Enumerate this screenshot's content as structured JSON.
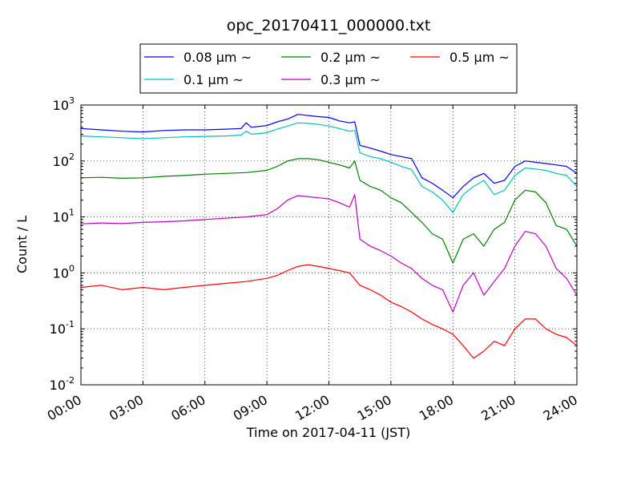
{
  "chart_data": {
    "type": "line",
    "title": "opc_20170411_000000.txt",
    "xlabel": "Time on 2017-04-11 (JST)",
    "ylabel": "Count / L",
    "yscale": "log",
    "ylim": [
      0.01,
      1000
    ],
    "xlim": [
      "00:00",
      "24:00"
    ],
    "x_ticks": [
      "00:00",
      "03:00",
      "06:00",
      "09:00",
      "12:00",
      "15:00",
      "18:00",
      "21:00",
      "24:00"
    ],
    "y_ticks": [
      {
        "base": "10",
        "exp": "-2"
      },
      {
        "base": "10",
        "exp": "-1"
      },
      {
        "base": "10",
        "exp": "0"
      },
      {
        "base": "10",
        "exp": "1"
      },
      {
        "base": "10",
        "exp": "2"
      },
      {
        "base": "10",
        "exp": "3"
      }
    ],
    "grid": true,
    "legend": "top-center",
    "series": [
      {
        "name": "0.08 μm ~",
        "color": "#0000ff",
        "x": [
          "00:00",
          "01:00",
          "02:00",
          "03:00",
          "04:00",
          "05:00",
          "06:00",
          "07:00",
          "07:45",
          "08:00",
          "08:15",
          "09:00",
          "09:30",
          "10:00",
          "10:30",
          "11:00",
          "11:30",
          "12:00",
          "12:30",
          "13:00",
          "13:15",
          "13:30",
          "14:00",
          "14:30",
          "15:00",
          "15:30",
          "16:00",
          "16:30",
          "17:00",
          "17:30",
          "18:00",
          "18:30",
          "19:00",
          "19:30",
          "20:00",
          "20:30",
          "21:00",
          "21:30",
          "22:00",
          "22:30",
          "23:00",
          "23:30",
          "24:00"
        ],
        "y": [
          380,
          360,
          340,
          330,
          350,
          360,
          360,
          370,
          380,
          480,
          400,
          430,
          500,
          560,
          680,
          650,
          620,
          600,
          520,
          480,
          500,
          190,
          170,
          150,
          130,
          120,
          110,
          50,
          40,
          30,
          22,
          35,
          50,
          60,
          40,
          45,
          80,
          100,
          95,
          90,
          85,
          80,
          60
        ]
      },
      {
        "name": "0.1 μm ~",
        "color": "#00bfbf",
        "x": [
          "00:00",
          "01:00",
          "02:00",
          "03:00",
          "04:00",
          "05:00",
          "06:00",
          "07:00",
          "07:45",
          "08:00",
          "08:15",
          "09:00",
          "09:30",
          "10:00",
          "10:30",
          "11:00",
          "11:30",
          "12:00",
          "12:30",
          "13:00",
          "13:15",
          "13:30",
          "14:00",
          "14:30",
          "15:00",
          "15:30",
          "16:00",
          "16:30",
          "17:00",
          "17:30",
          "18:00",
          "18:30",
          "19:00",
          "19:30",
          "20:00",
          "20:30",
          "21:00",
          "21:30",
          "22:00",
          "22:30",
          "23:00",
          "23:30",
          "24:00"
        ],
        "y": [
          280,
          270,
          260,
          250,
          260,
          270,
          275,
          280,
          290,
          340,
          300,
          320,
          370,
          420,
          480,
          470,
          450,
          420,
          380,
          340,
          350,
          140,
          120,
          110,
          95,
          80,
          70,
          35,
          28,
          20,
          12,
          25,
          35,
          45,
          25,
          30,
          55,
          75,
          72,
          68,
          60,
          55,
          35
        ]
      },
      {
        "name": "0.2 μm ~",
        "color": "#008000",
        "x": [
          "00:00",
          "01:00",
          "02:00",
          "03:00",
          "04:00",
          "05:00",
          "06:00",
          "07:00",
          "08:00",
          "09:00",
          "09:30",
          "10:00",
          "10:30",
          "11:00",
          "11:30",
          "12:00",
          "12:30",
          "13:00",
          "13:15",
          "13:30",
          "14:00",
          "14:30",
          "15:00",
          "15:30",
          "16:00",
          "16:30",
          "17:00",
          "17:30",
          "18:00",
          "18:30",
          "19:00",
          "19:30",
          "20:00",
          "20:30",
          "21:00",
          "21:30",
          "22:00",
          "22:30",
          "23:00",
          "23:30",
          "24:00"
        ],
        "y": [
          50,
          51,
          49,
          50,
          53,
          55,
          58,
          60,
          62,
          68,
          80,
          100,
          110,
          110,
          105,
          95,
          85,
          75,
          100,
          45,
          35,
          30,
          22,
          18,
          12,
          8,
          5,
          4,
          1.5,
          4,
          5,
          3,
          6,
          8,
          20,
          30,
          28,
          18,
          7,
          6,
          3
        ]
      },
      {
        "name": "0.3 μm ~",
        "color": "#bf00bf",
        "x": [
          "00:00",
          "01:00",
          "02:00",
          "03:00",
          "04:00",
          "05:00",
          "06:00",
          "07:00",
          "08:00",
          "09:00",
          "09:30",
          "10:00",
          "10:30",
          "11:00",
          "11:30",
          "12:00",
          "12:30",
          "13:00",
          "13:15",
          "13:30",
          "14:00",
          "14:30",
          "15:00",
          "15:30",
          "16:00",
          "16:30",
          "17:00",
          "17:30",
          "18:00",
          "18:30",
          "19:00",
          "19:30",
          "20:00",
          "20:30",
          "21:00",
          "21:30",
          "22:00",
          "22:30",
          "23:00",
          "23:30",
          "24:00"
        ],
        "y": [
          7.5,
          7.8,
          7.6,
          8,
          8.2,
          8.5,
          9,
          9.5,
          10,
          11,
          14,
          20,
          24,
          23,
          22,
          21,
          18,
          15,
          25,
          4,
          3,
          2.5,
          2,
          1.5,
          1.2,
          0.8,
          0.6,
          0.5,
          0.2,
          0.6,
          1,
          0.4,
          0.7,
          1.2,
          3,
          5.5,
          5,
          3,
          1.2,
          0.8,
          0.4
        ]
      },
      {
        "name": "0.5 μm ~",
        "color": "#ff0000",
        "x": [
          "00:00",
          "01:00",
          "02:00",
          "03:00",
          "04:00",
          "05:00",
          "06:00",
          "07:00",
          "08:00",
          "09:00",
          "09:30",
          "10:00",
          "10:30",
          "11:00",
          "11:30",
          "12:00",
          "12:30",
          "13:00",
          "13:30",
          "14:00",
          "14:30",
          "15:00",
          "15:30",
          "16:00",
          "16:30",
          "17:00",
          "17:30",
          "18:00",
          "18:30",
          "19:00",
          "19:30",
          "20:00",
          "20:30",
          "21:00",
          "21:30",
          "22:00",
          "22:30",
          "23:00",
          "23:30",
          "24:00"
        ],
        "y": [
          0.55,
          0.6,
          0.5,
          0.55,
          0.5,
          0.55,
          0.6,
          0.65,
          0.7,
          0.8,
          0.9,
          1.1,
          1.3,
          1.4,
          1.3,
          1.2,
          1.1,
          1.0,
          0.6,
          0.5,
          0.4,
          0.3,
          0.25,
          0.2,
          0.15,
          0.12,
          0.1,
          0.08,
          0.05,
          0.03,
          0.04,
          0.06,
          0.05,
          0.1,
          0.15,
          0.15,
          0.1,
          0.08,
          0.07,
          0.05
        ]
      }
    ]
  }
}
